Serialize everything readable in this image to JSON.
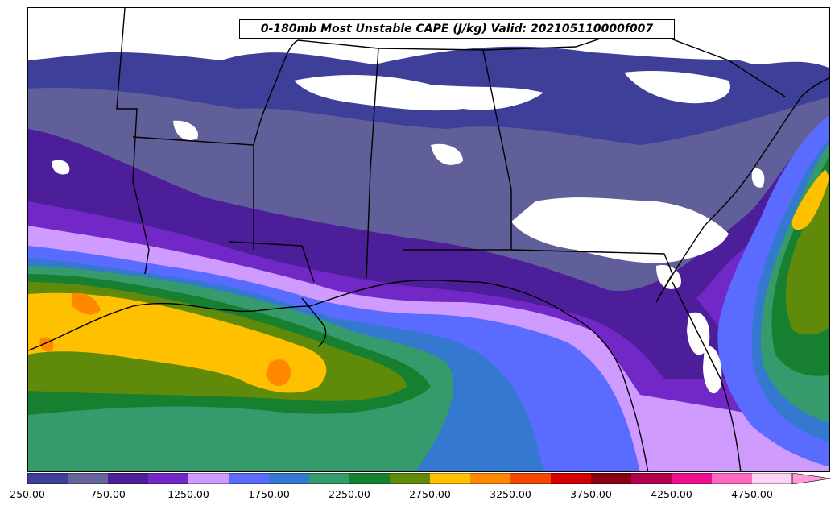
{
  "title": "0-180mb Most Unstable CAPE (J/kg) Valid: 202105110000f007",
  "colorbar": {
    "levels": [
      250,
      500,
      750,
      1000,
      1250,
      1500,
      1750,
      2000,
      2250,
      2500,
      2750,
      3000,
      3250,
      3500,
      3750,
      4000,
      4250,
      4500,
      4750
    ],
    "colors": [
      "#3e3f98",
      "#64639a",
      "#4c1e9a",
      "#7228c7",
      "#cf9bff",
      "#5a6cff",
      "#3478d0",
      "#359a6c",
      "#168030",
      "#5f8a0a",
      "#ffc000",
      "#ff8800",
      "#f24800",
      "#d40000",
      "#8a0010",
      "#b4004c",
      "#ee1090",
      "#ff6ac0",
      "#ffd2f5"
    ],
    "extend": "max",
    "tick_labels": [
      "250.00",
      "750.00",
      "1250.00",
      "1750.00",
      "2250.00",
      "2750.00",
      "3250.00",
      "3750.00",
      "4250.00",
      "4750.00"
    ]
  },
  "map": {
    "region": "Southeastern United States and Gulf of Mexico",
    "field": "most-unstable-cape",
    "boundaries": [
      "state-lines",
      "coastlines"
    ],
    "land_color": "#ffffff",
    "boundary_color": "#000000"
  }
}
